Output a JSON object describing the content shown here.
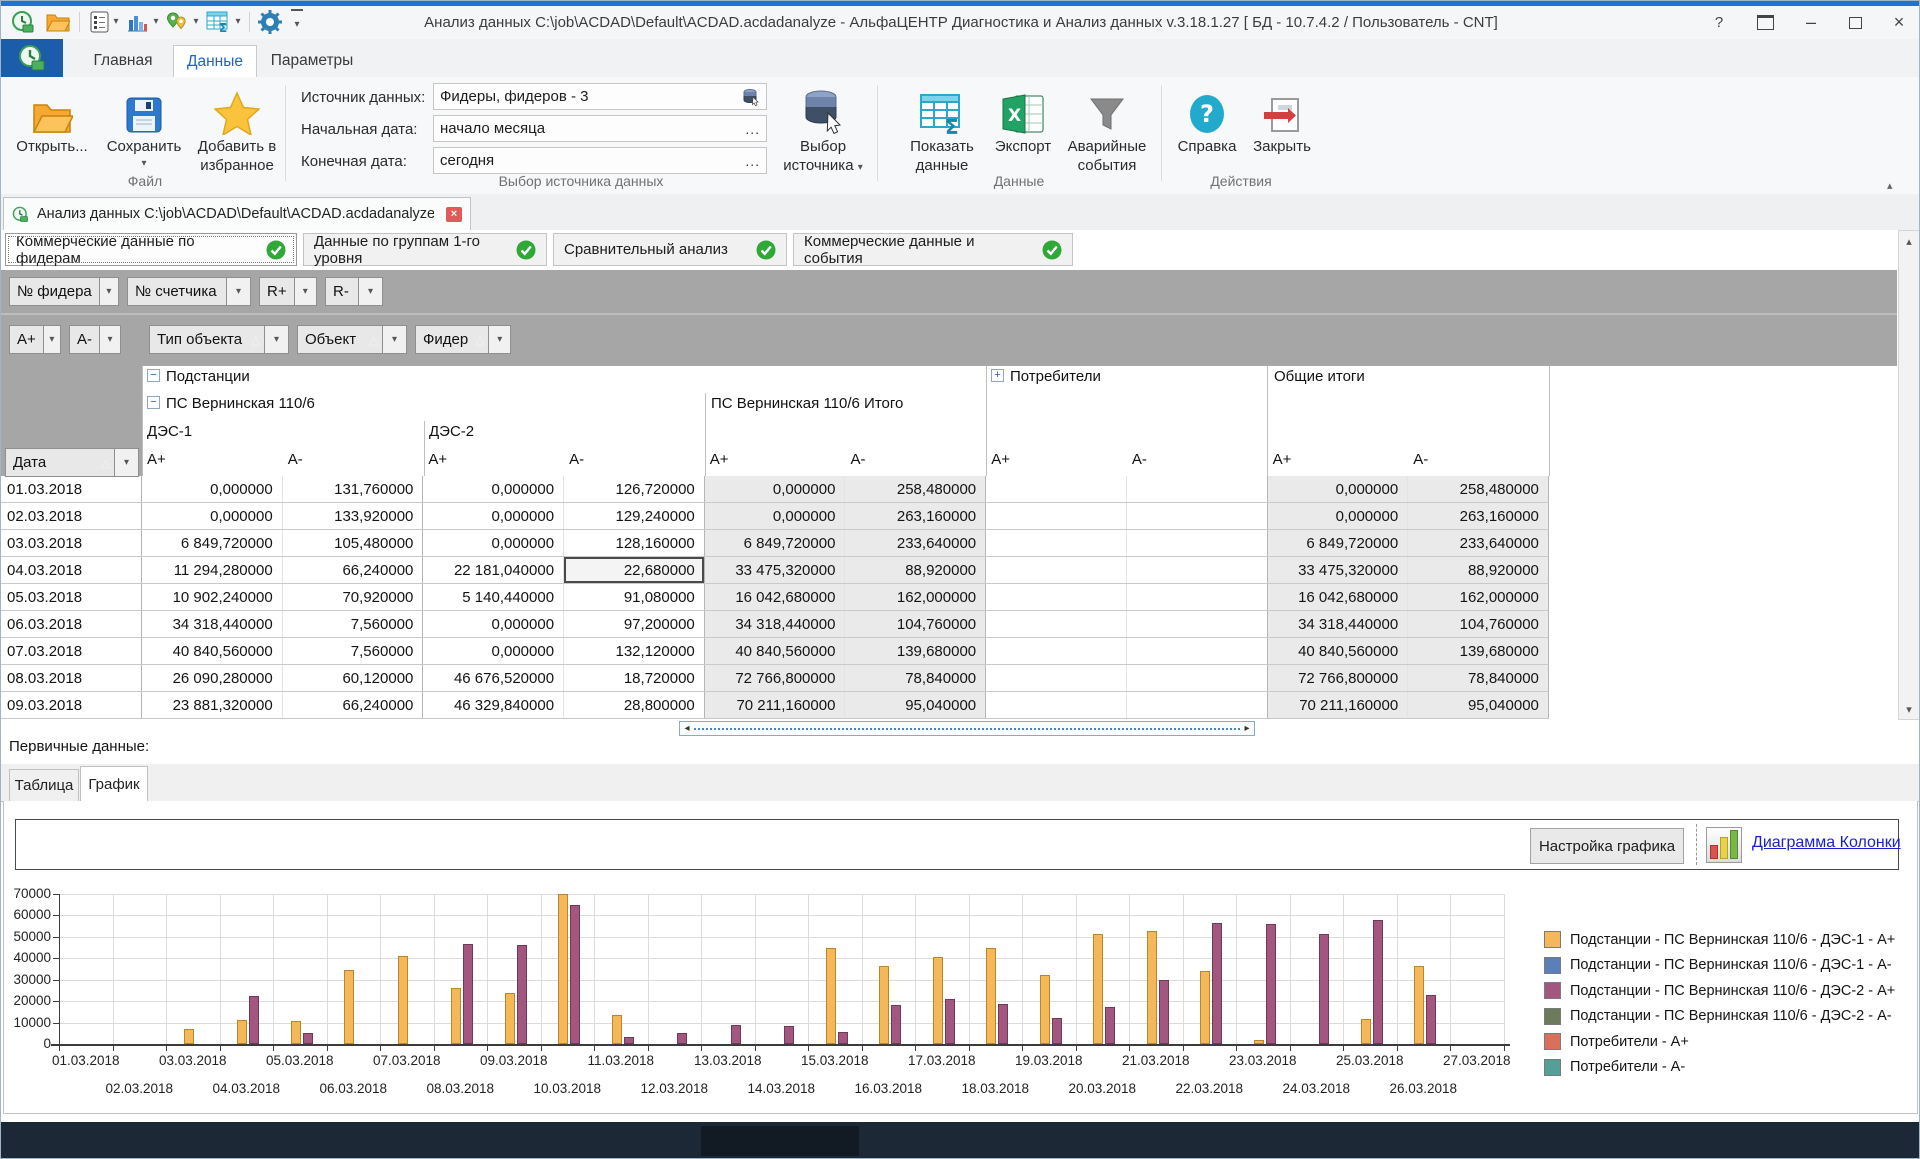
{
  "icons": {
    "caret_down": "▾",
    "sort_asc": "△",
    "minimize": "–",
    "close": "×",
    "help": "?",
    "up_arrow": "▴",
    "down_arrow": "▾",
    "left_arrow": "◂",
    "right_arrow": "▸",
    "ellipsis": "...",
    "collapse": "−",
    "expand": "+",
    "ribbon_collapse": "▴"
  },
  "titlebar": {
    "title": "Анализ данных C:\\job\\ACDAD\\Default\\ACDAD.acdadanalyze - АльфаЦЕНТР Диагностика и Анализ данных v.3.18.1.27  [ БД - 10.7.4.2 / Пользователь - CNT]"
  },
  "ribbon": {
    "tabs": [
      {
        "label": "Главная"
      },
      {
        "label": "Данные"
      },
      {
        "label": "Параметры"
      }
    ],
    "selected_tab": 1,
    "file_group": {
      "label": "Файл",
      "open": "Открыть...",
      "save": "Сохранить",
      "favorite_line1": "Добавить в",
      "favorite_line2": "избранное"
    },
    "source_group": {
      "label": "Выбор источника данных",
      "source_label": "Источник данных:",
      "source_value": "Фидеры, фидеров - 3",
      "start_label": "Начальная дата:",
      "start_value": "начало месяца",
      "end_label": "Конечная дата:",
      "end_value": "сегодня",
      "select_source_line1": "Выбор",
      "select_source_line2": "источника"
    },
    "data_group": {
      "label": "Данные",
      "show_data_line1": "Показать",
      "show_data_line2": "данные",
      "export": "Экспорт",
      "emergency_line1": "Аварийные",
      "emergency_line2": "события"
    },
    "actions_group": {
      "label": "Действия",
      "help": "Справка",
      "close": "Закрыть"
    }
  },
  "doc_tab": {
    "label": "Анализ данных C:\\job\\ACDAD\\Default\\ACDAD.acdadanalyze"
  },
  "view_tabs": [
    {
      "label": "Коммерческие данные по фидерам"
    },
    {
      "label": "Данные по группам 1-го уровня"
    },
    {
      "label": "Сравнительный анализ"
    },
    {
      "label": "Коммерческие данные и события"
    }
  ],
  "grid": {
    "filters_row1": [
      "№ фидера",
      "№ счетчика",
      "R+",
      "R-"
    ],
    "filters_row2": [
      "A+",
      "A-"
    ],
    "column_filters": [
      "Тип объекта",
      "Объект",
      "Фидер"
    ],
    "date_header": "Дата",
    "groups": {
      "substations": "Подстанции",
      "consumers": "Потребители",
      "totals": "Общие итоги",
      "ps": "ПС Вернинская 110/6",
      "ps_total": "ПС Вернинская 110/6 Итого",
      "des1": "ДЭС-1",
      "des2": "ДЭС-2"
    },
    "subheaders": [
      "A+",
      "A-",
      "A+",
      "A-",
      "A+",
      "A-",
      "A+",
      "A-",
      "A+",
      "A-"
    ],
    "rows": [
      {
        "date": "01.03.2018",
        "values": [
          "0,000000",
          "131,760000",
          "0,000000",
          "126,720000",
          "0,000000",
          "258,480000",
          "",
          "",
          "0,000000",
          "258,480000"
        ]
      },
      {
        "date": "02.03.2018",
        "values": [
          "0,000000",
          "133,920000",
          "0,000000",
          "129,240000",
          "0,000000",
          "263,160000",
          "",
          "",
          "0,000000",
          "263,160000"
        ]
      },
      {
        "date": "03.03.2018",
        "values": [
          "6 849,720000",
          "105,480000",
          "0,000000",
          "128,160000",
          "6 849,720000",
          "233,640000",
          "",
          "",
          "6 849,720000",
          "233,640000"
        ]
      },
      {
        "date": "04.03.2018",
        "values": [
          "11 294,280000",
          "66,240000",
          "22 181,040000",
          "22,680000",
          "33 475,320000",
          "88,920000",
          "",
          "",
          "33 475,320000",
          "88,920000"
        ]
      },
      {
        "date": "05.03.2018",
        "values": [
          "10 902,240000",
          "70,920000",
          "5 140,440000",
          "91,080000",
          "16 042,680000",
          "162,000000",
          "",
          "",
          "16 042,680000",
          "162,000000"
        ]
      },
      {
        "date": "06.03.2018",
        "values": [
          "34 318,440000",
          "7,560000",
          "0,000000",
          "97,200000",
          "34 318,440000",
          "104,760000",
          "",
          "",
          "34 318,440000",
          "104,760000"
        ]
      },
      {
        "date": "07.03.2018",
        "values": [
          "40 840,560000",
          "7,560000",
          "0,000000",
          "132,120000",
          "40 840,560000",
          "139,680000",
          "",
          "",
          "40 840,560000",
          "139,680000"
        ]
      },
      {
        "date": "08.03.2018",
        "values": [
          "26 090,280000",
          "60,120000",
          "46 676,520000",
          "18,720000",
          "72 766,800000",
          "78,840000",
          "",
          "",
          "72 766,800000",
          "78,840000"
        ]
      },
      {
        "date": "09.03.2018",
        "values": [
          "23 881,320000",
          "66,240000",
          "46 329,840000",
          "28,800000",
          "70 211,160000",
          "95,040000",
          "",
          "",
          "70 211,160000",
          "95,040000"
        ]
      }
    ],
    "selected_cell": {
      "row": 3,
      "col": 3
    }
  },
  "primary": {
    "label": "Первичные данные:",
    "tabs": [
      "Таблица",
      "График"
    ],
    "selected_tab": 1,
    "settings_button": "Настройка графика",
    "diagram_link": "Диаграмма Колонки"
  },
  "chart_data": {
    "type": "bar",
    "title": "",
    "xlabel": "",
    "ylabel": "",
    "ylim": [
      0,
      70000
    ],
    "ytick_step": 10000,
    "grid": true,
    "legend_position": "right",
    "x": [
      "01.03.2018",
      "02.03.2018",
      "03.03.2018",
      "04.03.2018",
      "05.03.2018",
      "06.03.2018",
      "07.03.2018",
      "08.03.2018",
      "09.03.2018",
      "10.03.2018",
      "11.03.2018",
      "12.03.2018",
      "13.03.2018",
      "14.03.2018",
      "15.03.2018",
      "16.03.2018",
      "17.03.2018",
      "18.03.2018",
      "19.03.2018",
      "20.03.2018",
      "21.03.2018",
      "22.03.2018",
      "23.03.2018",
      "24.03.2018",
      "25.03.2018",
      "26.03.2018",
      "27.03.2018"
    ],
    "series": [
      {
        "name": "Подстанции - ПС Вернинская 110/6 - ДЭС-1 - A+",
        "color": "#F4B858",
        "border": "#B8862B",
        "values": [
          0,
          0,
          6849.72,
          11294.28,
          10902.24,
          34318.44,
          40840.56,
          26090.28,
          23881.32,
          70000,
          13500,
          0,
          0,
          0,
          44900,
          36200,
          40800,
          44900,
          32000,
          51400,
          52500,
          34100,
          1700,
          0,
          11700,
          36300,
          0
        ]
      },
      {
        "name": "Подстанции - ПС Вернинская 110/6 - ДЭС-1 - A-",
        "color": "#5B7FB8",
        "border": "#3D5A8C",
        "values": [
          131.76,
          133.92,
          105.48,
          66.24,
          70.92,
          7.56,
          7.56,
          60.12,
          66.24,
          0,
          0,
          0,
          0,
          0,
          0,
          0,
          0,
          0,
          0,
          0,
          0,
          0,
          0,
          0,
          0,
          0,
          0
        ]
      },
      {
        "name": "Подстанции - ПС Вернинская 110/6 - ДЭС-2 - A+",
        "color": "#A3567F",
        "border": "#6E3A57",
        "values": [
          0,
          0,
          0,
          22181.04,
          5140.44,
          0,
          0,
          46676.52,
          46329.84,
          64700,
          3300,
          4900,
          9000,
          8300,
          5600,
          18400,
          21000,
          18600,
          12200,
          17300,
          29800,
          56500,
          56200,
          51400,
          57900,
          23000,
          0
        ]
      },
      {
        "name": "Подстанции - ПС Вернинская 110/6 - ДЭС-2 - A-",
        "color": "#6D7A5C",
        "border": "#4C5840",
        "values": [
          126.72,
          129.24,
          128.16,
          22.68,
          91.08,
          97.2,
          132.12,
          18.72,
          28.8,
          0,
          0,
          0,
          0,
          0,
          0,
          0,
          0,
          0,
          0,
          0,
          0,
          0,
          0,
          0,
          0,
          0,
          0
        ]
      },
      {
        "name": "Потребители - A+",
        "color": "#D9705C",
        "border": "#A34A38",
        "values": [
          0,
          0,
          0,
          0,
          0,
          0,
          0,
          0,
          0,
          0,
          0,
          0,
          0,
          0,
          0,
          0,
          0,
          0,
          0,
          0,
          0,
          0,
          0,
          0,
          0,
          0,
          0
        ]
      },
      {
        "name": "Потребители - A-",
        "color": "#54A099",
        "border": "#367A73",
        "values": [
          0,
          0,
          0,
          0,
          0,
          0,
          0,
          0,
          0,
          0,
          0,
          0,
          0,
          0,
          0,
          0,
          0,
          0,
          0,
          0,
          0,
          0,
          0,
          0,
          0,
          0,
          0
        ]
      }
    ]
  }
}
